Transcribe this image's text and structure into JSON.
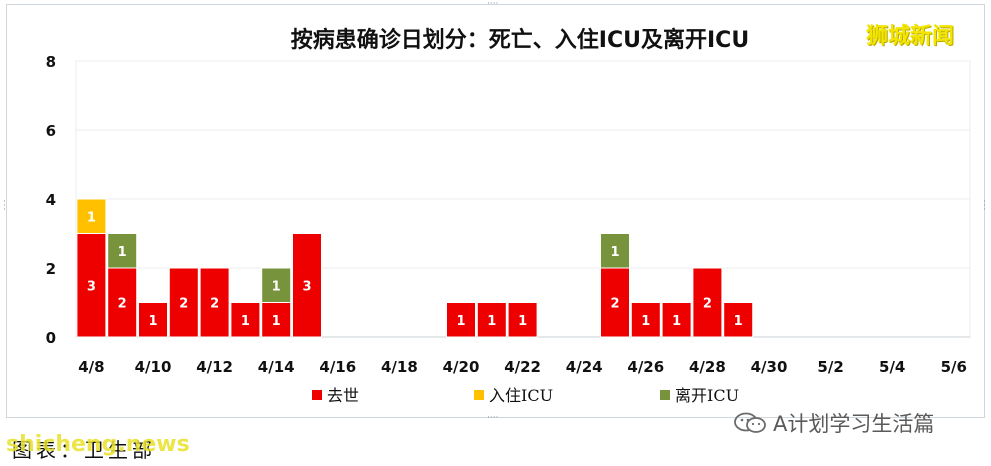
{
  "header": {
    "title": "按病患确诊日划分：死亡、入住ICU及离开ICU",
    "watermark_top": "狮城新闻"
  },
  "footer": {
    "wechat_text": "A计划学习生活篇",
    "caption": "图表：卫生部",
    "watermark_bottom": "shicheng.news"
  },
  "colors": {
    "death": "#ee0000",
    "icu_in": "#ffc000",
    "icu_out": "#77933c",
    "grid": "#e8eef0",
    "text": "#111111"
  },
  "chart_data": {
    "type": "bar",
    "stacked": true,
    "title": "按病患确诊日划分：死亡、入住ICU及离开ICU",
    "xlabel": "",
    "ylabel": "",
    "ylim": [
      0,
      8
    ],
    "yticks": [
      "0",
      "2",
      "4",
      "6",
      "8"
    ],
    "grid": true,
    "legend_position": "bottom",
    "categories": [
      "4/8",
      "4/9",
      "4/10",
      "4/11",
      "4/12",
      "4/13",
      "4/14",
      "4/15",
      "4/16",
      "4/17",
      "4/18",
      "4/19",
      "4/20",
      "4/21",
      "4/22",
      "4/23",
      "4/24",
      "4/25",
      "4/26",
      "4/27",
      "4/28",
      "4/29",
      "4/30",
      "5/1",
      "5/2",
      "5/3",
      "5/4",
      "5/5",
      "5/6"
    ],
    "tick_labels": [
      "4/8",
      "4/10",
      "4/12",
      "4/14",
      "4/16",
      "4/18",
      "4/20",
      "4/22",
      "4/24",
      "4/26",
      "4/28",
      "4/30",
      "5/2",
      "5/4",
      "5/6"
    ],
    "series": [
      {
        "name": "去世",
        "values": [
          3,
          2,
          1,
          2,
          2,
          1,
          1,
          3,
          0,
          0,
          0,
          0,
          1,
          1,
          1,
          0,
          0,
          2,
          1,
          1,
          2,
          1,
          0,
          0,
          0,
          0,
          0,
          0,
          0
        ]
      },
      {
        "name": "入住ICU",
        "values": [
          1,
          0,
          0,
          0,
          0,
          0,
          0,
          0,
          0,
          0,
          0,
          0,
          0,
          0,
          0,
          0,
          0,
          0,
          0,
          0,
          0,
          0,
          0,
          0,
          0,
          0,
          0,
          0,
          0
        ]
      },
      {
        "name": "离开ICU",
        "values": [
          0,
          1,
          0,
          0,
          0,
          0,
          1,
          0,
          0,
          0,
          0,
          0,
          0,
          0,
          0,
          0,
          0,
          1,
          0,
          0,
          0,
          0,
          0,
          0,
          0,
          0,
          0,
          0,
          0
        ]
      }
    ]
  }
}
